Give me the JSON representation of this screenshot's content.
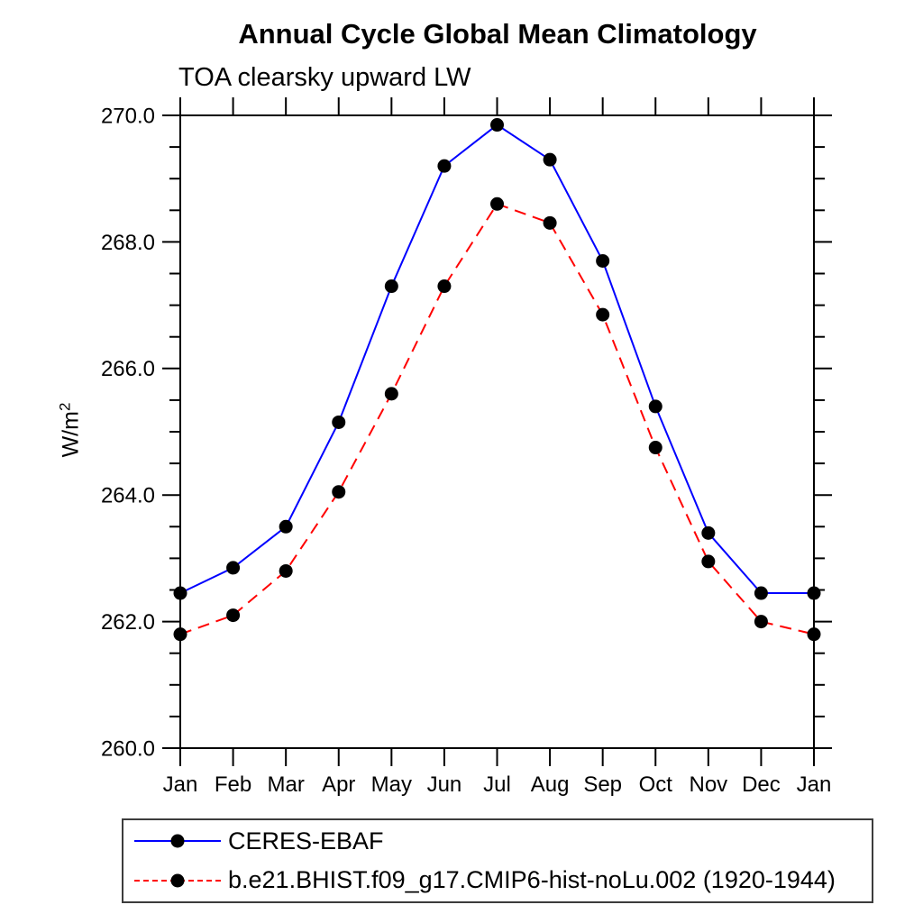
{
  "title": "Annual Cycle Global Mean Climatology",
  "subtitle": "TOA clearsky upward LW",
  "y_axis_label": {
    "base": "W/m",
    "sup": "2"
  },
  "legend": {
    "items": [
      {
        "label": "CERES-EBAF"
      },
      {
        "label": "b.e21.BHIST.f09_g17.CMIP6-hist-noLu.002 (1920-1944)"
      }
    ]
  },
  "chart_data": {
    "type": "line",
    "title": "Annual Cycle Global Mean Climatology",
    "subtitle": "TOA clearsky upward LW",
    "xlabel": "",
    "ylabel": "W/m2",
    "categories": [
      "Jan",
      "Feb",
      "Mar",
      "Apr",
      "May",
      "Jun",
      "Jul",
      "Aug",
      "Sep",
      "Oct",
      "Nov",
      "Dec",
      "Jan"
    ],
    "series": [
      {
        "name": "CERES-EBAF",
        "color": "#0000ff",
        "line_style": "solid",
        "marker": "circle",
        "marker_color": "#000000",
        "values": [
          262.45,
          262.85,
          263.5,
          265.15,
          267.3,
          269.2,
          269.85,
          269.3,
          267.7,
          265.4,
          263.4,
          262.45,
          262.45
        ]
      },
      {
        "name": "b.e21.BHIST.f09_g17.CMIP6-hist-noLu.002 (1920-1944)",
        "color": "#ff0000",
        "line_style": "dashed",
        "marker": "circle",
        "marker_color": "#000000",
        "values": [
          261.8,
          262.1,
          262.8,
          264.05,
          265.6,
          267.3,
          268.6,
          268.3,
          266.85,
          264.75,
          262.95,
          262.0,
          261.8
        ]
      }
    ],
    "ylim": [
      260.0,
      270.0
    ],
    "ytick_major_step": 2.0,
    "ytick_minor_step": 0.5,
    "ytick_label_decimals": 1,
    "grid": false,
    "tick_direction": "out",
    "box_on": true,
    "legend_position": "bottom-left-box",
    "axis_color": "#000000"
  }
}
